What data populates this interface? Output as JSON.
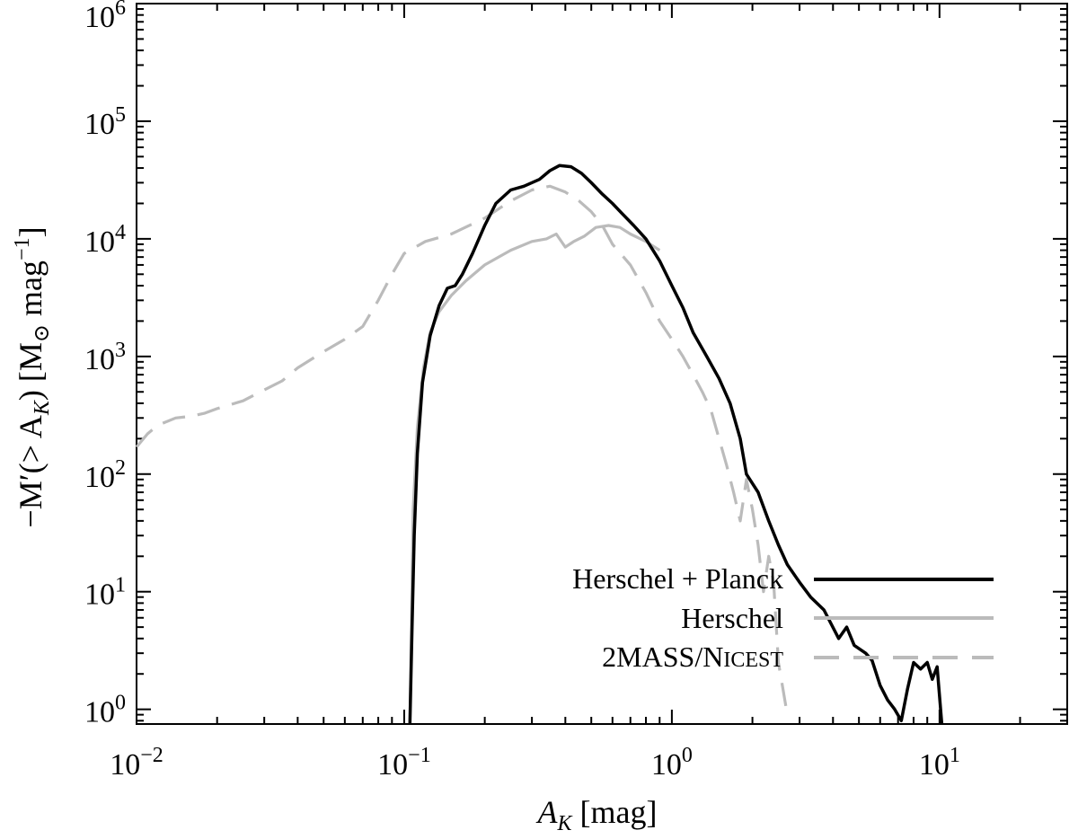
{
  "chart_data": {
    "type": "line",
    "xscale": "log",
    "yscale": "log",
    "xlim": [
      0.01,
      30
    ],
    "ylim": [
      0.75,
      1000000
    ],
    "grid": false,
    "legend_position": "bottom-right",
    "xlabel": {
      "main": "A",
      "sub": "K",
      "rest": " [mag]"
    },
    "ylabel": {
      "pre": "−M′(> A",
      "sub": "K",
      "mid": ") [M",
      "sub2": "⊙",
      "post": " mag",
      "sup": "−1",
      "close": "]"
    },
    "x_ticks": [
      {
        "value": 0.01,
        "base": "10",
        "exp": "−2"
      },
      {
        "value": 0.1,
        "base": "10",
        "exp": "−1"
      },
      {
        "value": 1,
        "base": "10",
        "exp": "0"
      },
      {
        "value": 10,
        "base": "10",
        "exp": "1"
      }
    ],
    "y_ticks": [
      {
        "value": 1,
        "base": "10",
        "exp": "0"
      },
      {
        "value": 10,
        "base": "10",
        "exp": "1"
      },
      {
        "value": 100,
        "base": "10",
        "exp": "2"
      },
      {
        "value": 1000,
        "base": "10",
        "exp": "3"
      },
      {
        "value": 10000,
        "base": "10",
        "exp": "4"
      },
      {
        "value": 100000,
        "base": "10",
        "exp": "5"
      },
      {
        "value": 1000000,
        "base": "10",
        "exp": "6"
      }
    ],
    "series": [
      {
        "name": "Herschel + Planck",
        "color": "#000000",
        "dash": "solid",
        "points": [
          [
            0.105,
            0.75
          ],
          [
            0.107,
            5
          ],
          [
            0.109,
            30
          ],
          [
            0.112,
            150
          ],
          [
            0.117,
            600
          ],
          [
            0.125,
            1500
          ],
          [
            0.135,
            2700
          ],
          [
            0.145,
            3800
          ],
          [
            0.155,
            4000
          ],
          [
            0.165,
            5000
          ],
          [
            0.18,
            7500
          ],
          [
            0.2,
            13000
          ],
          [
            0.22,
            20000
          ],
          [
            0.25,
            26000
          ],
          [
            0.28,
            28000
          ],
          [
            0.32,
            32000
          ],
          [
            0.35,
            38000
          ],
          [
            0.38,
            42000
          ],
          [
            0.42,
            41000
          ],
          [
            0.46,
            36000
          ],
          [
            0.5,
            30000
          ],
          [
            0.55,
            24000
          ],
          [
            0.6,
            20000
          ],
          [
            0.65,
            16500
          ],
          [
            0.72,
            13000
          ],
          [
            0.8,
            10000
          ],
          [
            0.9,
            6500
          ],
          [
            1.0,
            4000
          ],
          [
            1.1,
            2600
          ],
          [
            1.2,
            1600
          ],
          [
            1.35,
            1000
          ],
          [
            1.5,
            650
          ],
          [
            1.65,
            400
          ],
          [
            1.8,
            200
          ],
          [
            1.9,
            100
          ],
          [
            2.1,
            70
          ],
          [
            2.3,
            40
          ],
          [
            2.5,
            25
          ],
          [
            2.7,
            17
          ],
          [
            3.0,
            12
          ],
          [
            3.3,
            9
          ],
          [
            3.7,
            7
          ],
          [
            4.2,
            4
          ],
          [
            4.5,
            5
          ],
          [
            4.8,
            3.5
          ],
          [
            5.3,
            3
          ],
          [
            5.6,
            2.6
          ],
          [
            6.0,
            1.6
          ],
          [
            6.4,
            1.2
          ],
          [
            6.8,
            1.0
          ],
          [
            7.2,
            0.8
          ],
          [
            7.6,
            1.5
          ],
          [
            8.0,
            2.5
          ],
          [
            8.5,
            2.2
          ],
          [
            9.0,
            2.5
          ],
          [
            9.4,
            1.8
          ],
          [
            9.8,
            2.3
          ],
          [
            10.2,
            0.75
          ]
        ]
      },
      {
        "name": "Herschel",
        "color": "#bbbbbb",
        "dash": "solid",
        "points": [
          [
            0.105,
            0.75
          ],
          [
            0.108,
            50
          ],
          [
            0.112,
            250
          ],
          [
            0.118,
            800
          ],
          [
            0.125,
            1600
          ],
          [
            0.135,
            2400
          ],
          [
            0.15,
            3300
          ],
          [
            0.17,
            4400
          ],
          [
            0.2,
            6000
          ],
          [
            0.25,
            8000
          ],
          [
            0.3,
            9500
          ],
          [
            0.34,
            10000
          ],
          [
            0.37,
            11000
          ],
          [
            0.4,
            8500
          ],
          [
            0.43,
            9500
          ],
          [
            0.47,
            10500
          ],
          [
            0.52,
            12500
          ],
          [
            0.58,
            13000
          ],
          [
            0.64,
            12500
          ],
          [
            0.7,
            11000
          ],
          [
            0.8,
            9500
          ],
          [
            0.9,
            8000
          ]
        ]
      },
      {
        "name": "2MASS/Nicest",
        "color": "#bbbbbb",
        "dash": "dashed",
        "points": [
          [
            0.01,
            170
          ],
          [
            0.011,
            220
          ],
          [
            0.012,
            260
          ],
          [
            0.014,
            300
          ],
          [
            0.016,
            310
          ],
          [
            0.018,
            330
          ],
          [
            0.02,
            360
          ],
          [
            0.025,
            420
          ],
          [
            0.03,
            520
          ],
          [
            0.035,
            620
          ],
          [
            0.04,
            800
          ],
          [
            0.05,
            1100
          ],
          [
            0.06,
            1400
          ],
          [
            0.07,
            1800
          ],
          [
            0.08,
            3000
          ],
          [
            0.09,
            5000
          ],
          [
            0.1,
            7500
          ],
          [
            0.12,
            9500
          ],
          [
            0.15,
            11000
          ],
          [
            0.2,
            15000
          ],
          [
            0.25,
            21000
          ],
          [
            0.3,
            26000
          ],
          [
            0.35,
            28000
          ],
          [
            0.4,
            25000
          ],
          [
            0.45,
            21000
          ],
          [
            0.5,
            17000
          ],
          [
            0.55,
            13000
          ],
          [
            0.6,
            9000
          ],
          [
            0.7,
            6000
          ],
          [
            0.8,
            3500
          ],
          [
            0.9,
            2000
          ],
          [
            1.0,
            1400
          ],
          [
            1.1,
            1000
          ],
          [
            1.2,
            700
          ],
          [
            1.3,
            500
          ],
          [
            1.4,
            350
          ],
          [
            1.5,
            200
          ],
          [
            1.6,
            120
          ],
          [
            1.7,
            70
          ],
          [
            1.8,
            40
          ],
          [
            1.9,
            90
          ],
          [
            2.0,
            50
          ],
          [
            2.1,
            25
          ],
          [
            2.2,
            10
          ],
          [
            2.3,
            20
          ],
          [
            2.4,
            12
          ],
          [
            2.5,
            2.5
          ],
          [
            2.6,
            1.5
          ],
          [
            2.7,
            0.9
          ]
        ]
      }
    ]
  },
  "legend": {
    "series1": "Herschel + Planck",
    "series2": "Herschel",
    "series3_main": "2MASS/N",
    "series3_smallcaps": "ICEST"
  }
}
